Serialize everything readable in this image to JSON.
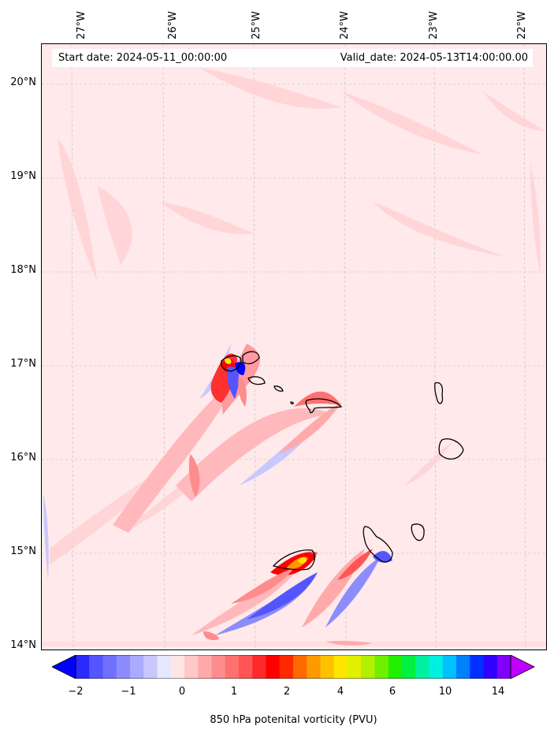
{
  "header": {
    "start_date": "Start date: 2024-05-11_00:00:00",
    "valid_date": "Valid_date: 2024-05-13T14:00:00.00"
  },
  "map": {
    "lon_labels": [
      "27°W",
      "26°W",
      "25°W",
      "24°W",
      "23°W",
      "22°W"
    ],
    "lat_labels": [
      "20°N",
      "19°N",
      "18°N",
      "17°N",
      "16°N",
      "15°N",
      "14°N"
    ],
    "background_color": "#ffe9ea",
    "coastline_color": "#000000"
  },
  "colorbar": {
    "tick_labels": [
      "−2",
      "−1",
      "0",
      "1",
      "2",
      "4",
      "6",
      "10",
      "14"
    ],
    "title": "850 hPa potenital vorticity (PVU)",
    "colors": [
      "#0000ff",
      "#2a2aff",
      "#5555ff",
      "#7070ff",
      "#8c8cff",
      "#aaaaff",
      "#c8c8ff",
      "#e6e6ff",
      "#ffe6e6",
      "#ffc8c8",
      "#ffaaaa",
      "#ff8c8c",
      "#ff7070",
      "#ff5555",
      "#ff2a2a",
      "#ff0000",
      "#ff2a00",
      "#ff6a00",
      "#ff9900",
      "#ffc000",
      "#ffe600",
      "#e0f000",
      "#b0f000",
      "#70f000",
      "#20f000",
      "#00f040",
      "#00f0a0",
      "#00f0e0",
      "#00c0ff",
      "#0080ff",
      "#0030ff",
      "#3000ff",
      "#8000ff",
      "#c000ff"
    ]
  }
}
